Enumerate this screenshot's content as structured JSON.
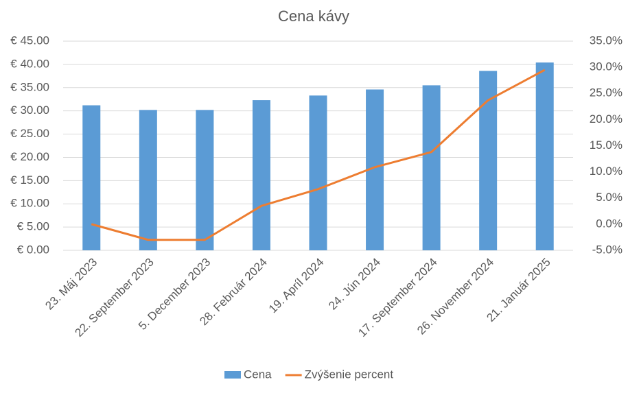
{
  "chart_data": {
    "type": "bar",
    "title": "Cena kávy",
    "categories": [
      "23. Máj 2023",
      "22. September 2023",
      "5. December 2023",
      "28. Február 2024",
      "19. Apríl 2024",
      "24. Jún 2024",
      "17. September 2024",
      "26. November 2024",
      "21. Január 2025"
    ],
    "series": [
      {
        "name": "Cena",
        "type": "bar",
        "color": "#5b9bd5",
        "values": [
          31.2,
          30.2,
          30.2,
          32.3,
          33.3,
          34.6,
          35.5,
          38.6,
          40.4
        ]
      },
      {
        "name": "Zvýšenie percent",
        "type": "line",
        "axis": "y2",
        "color": "#ed7d31",
        "values": [
          0,
          -3.0,
          -3.0,
          3.5,
          6.7,
          10.9,
          13.8,
          23.7,
          29.5
        ]
      }
    ],
    "ylim": [
      0,
      45
    ],
    "yticks": [
      {
        "value": 0,
        "label": "€ 0.00"
      },
      {
        "value": 5,
        "label": "€ 5.00"
      },
      {
        "value": 10,
        "label": "€ 10.00"
      },
      {
        "value": 15,
        "label": "€ 15.00"
      },
      {
        "value": 20,
        "label": "€ 20.00"
      },
      {
        "value": 25,
        "label": "€ 25.00"
      },
      {
        "value": 30,
        "label": "€ 30.00"
      },
      {
        "value": 35,
        "label": "€ 35.00"
      },
      {
        "value": 40,
        "label": "€ 40.00"
      },
      {
        "value": 45,
        "label": "€ 45.00"
      }
    ],
    "y2lim": [
      -5,
      35
    ],
    "y2ticks": [
      {
        "value": -5,
        "label": "-5.0%"
      },
      {
        "value": 0,
        "label": "0.0%"
      },
      {
        "value": 5,
        "label": "5.0%"
      },
      {
        "value": 10,
        "label": "10.0%"
      },
      {
        "value": 15,
        "label": "15.0%"
      },
      {
        "value": 20,
        "label": "20.0%"
      },
      {
        "value": 25,
        "label": "25.0%"
      },
      {
        "value": 30,
        "label": "30.0%"
      },
      {
        "value": 35,
        "label": "35.0%"
      }
    ],
    "grid": true,
    "legend": "bottom"
  }
}
